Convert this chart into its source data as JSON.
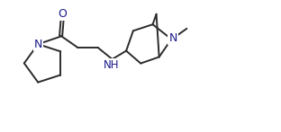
{
  "bg_color": "#ffffff",
  "line_color": "#2b2b2b",
  "text_color": "#1a1a8c",
  "figsize": [
    3.12,
    1.47
  ],
  "dpi": 100,
  "lw": 1.4,
  "xlim": [
    0.0,
    10.0
  ],
  "ylim": [
    0.5,
    5.2
  ]
}
